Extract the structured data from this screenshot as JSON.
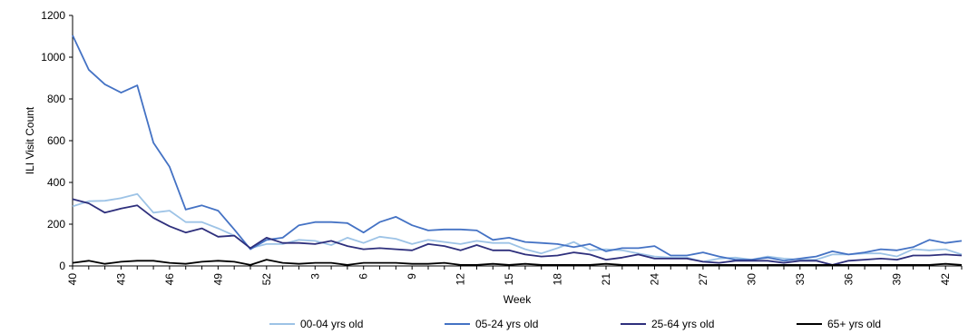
{
  "chart_data": {
    "type": "line",
    "title": "",
    "xlabel": "Week",
    "ylabel": "ILI Visit Count",
    "ylim": [
      0,
      1200
    ],
    "yticks": [
      0,
      200,
      400,
      600,
      800,
      1000,
      1200
    ],
    "grid": false,
    "legend_position": "bottom",
    "x": [
      40,
      41,
      42,
      43,
      44,
      45,
      46,
      47,
      48,
      49,
      50,
      51,
      52,
      1,
      2,
      3,
      4,
      5,
      6,
      7,
      8,
      9,
      10,
      11,
      12,
      13,
      14,
      15,
      16,
      17,
      18,
      19,
      20,
      21,
      22,
      23,
      24,
      25,
      26,
      27,
      28,
      29,
      30,
      31,
      32,
      33,
      34,
      35,
      36,
      37,
      38,
      39,
      40,
      41,
      42,
      43
    ],
    "xtick_labels": [
      "40",
      "43",
      "46",
      "49",
      "52",
      "3",
      "6",
      "9",
      "12",
      "15",
      "18",
      "21",
      "24",
      "27",
      "30",
      "33",
      "36",
      "39",
      "42"
    ],
    "series": [
      {
        "name": "00-04 yrs old",
        "color": "#9dc3e6",
        "values": [
          285,
          310,
          312,
          325,
          345,
          255,
          265,
          210,
          210,
          180,
          145,
          85,
          105,
          105,
          125,
          120,
          100,
          135,
          110,
          140,
          130,
          105,
          125,
          115,
          105,
          120,
          110,
          110,
          80,
          60,
          85,
          115,
          75,
          80,
          75,
          60,
          45,
          40,
          40,
          20,
          35,
          40,
          30,
          45,
          35,
          30,
          30,
          55,
          55,
          60,
          60,
          45,
          80,
          75,
          80,
          55
        ]
      },
      {
        "name": "05-24 yrs old",
        "color": "#4472c4",
        "values": [
          1105,
          940,
          870,
          830,
          865,
          590,
          475,
          270,
          290,
          265,
          175,
          80,
          125,
          135,
          195,
          210,
          210,
          205,
          160,
          210,
          235,
          195,
          170,
          175,
          175,
          170,
          125,
          135,
          115,
          110,
          105,
          90,
          105,
          70,
          85,
          85,
          95,
          50,
          50,
          65,
          45,
          30,
          30,
          40,
          25,
          35,
          45,
          70,
          55,
          65,
          80,
          75,
          90,
          125,
          110,
          120
        ]
      },
      {
        "name": "25-64 yrs old",
        "color": "#2e2f7c",
        "values": [
          320,
          300,
          255,
          275,
          290,
          230,
          190,
          160,
          180,
          140,
          145,
          85,
          135,
          110,
          110,
          105,
          120,
          95,
          80,
          85,
          80,
          75,
          105,
          95,
          75,
          100,
          75,
          75,
          55,
          45,
          50,
          65,
          55,
          30,
          40,
          55,
          35,
          35,
          35,
          20,
          15,
          25,
          25,
          25,
          15,
          25,
          25,
          5,
          25,
          30,
          35,
          30,
          50,
          50,
          55,
          50
        ]
      },
      {
        "name": "65+ yrs old",
        "color": "#000000",
        "values": [
          15,
          25,
          10,
          20,
          25,
          25,
          15,
          10,
          20,
          25,
          20,
          5,
          30,
          15,
          10,
          15,
          15,
          5,
          15,
          15,
          15,
          10,
          10,
          15,
          5,
          5,
          10,
          5,
          10,
          5,
          5,
          5,
          5,
          10,
          5,
          5,
          5,
          5,
          5,
          5,
          5,
          5,
          5,
          5,
          5,
          5,
          5,
          5,
          5,
          5,
          5,
          5,
          5,
          5,
          10,
          5
        ]
      }
    ]
  }
}
